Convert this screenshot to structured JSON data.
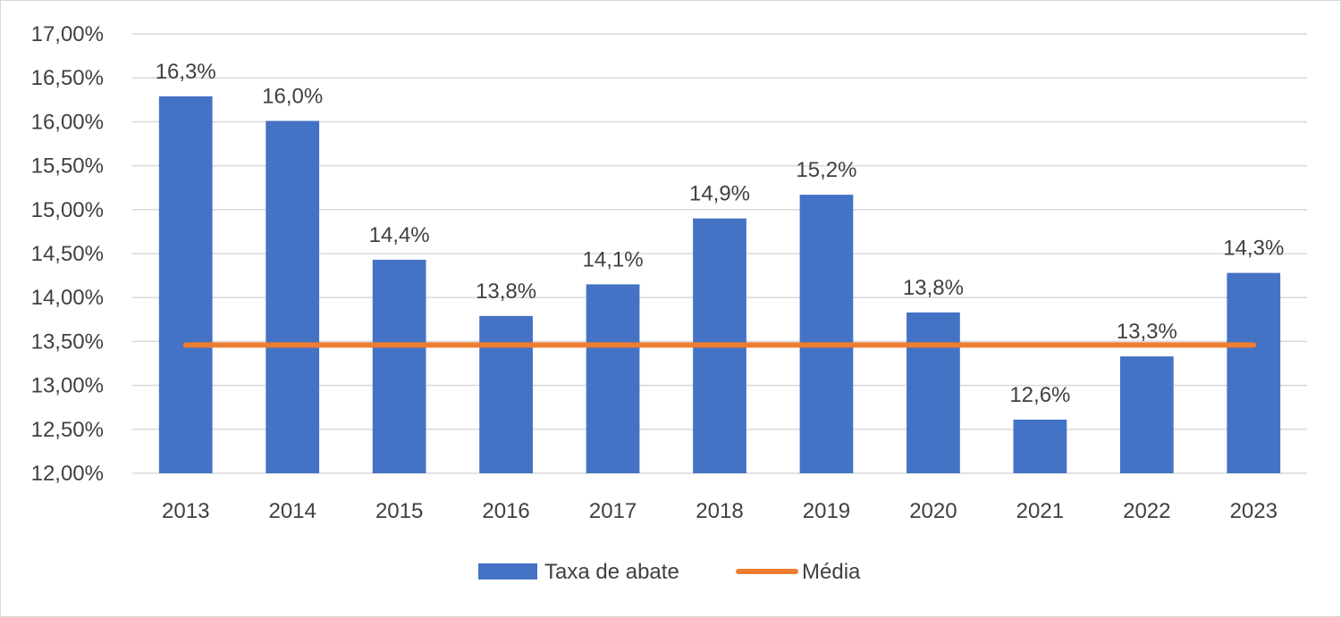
{
  "chart_data": {
    "type": "bar",
    "title": "",
    "xlabel": "",
    "ylabel": "",
    "categories": [
      "2013",
      "2014",
      "2015",
      "2016",
      "2017",
      "2018",
      "2019",
      "2020",
      "2021",
      "2022",
      "2023"
    ],
    "series": [
      {
        "name": "Taxa de abate",
        "type": "bar",
        "color": "#4472c4",
        "values": [
          16.29,
          16.01,
          14.43,
          13.79,
          14.15,
          14.9,
          15.17,
          13.83,
          12.61,
          13.33,
          14.28
        ],
        "data_labels": [
          "16,3%",
          "16,0%",
          "14,4%",
          "13,8%",
          "14,1%",
          "14,9%",
          "15,2%",
          "13,8%",
          "12,6%",
          "13,3%",
          "14,3%"
        ]
      },
      {
        "name": "Média",
        "type": "line",
        "color": "#ed7d31",
        "values": [
          13.46,
          13.46,
          13.46,
          13.46,
          13.46,
          13.46,
          13.46,
          13.46,
          13.46,
          13.46,
          13.46
        ]
      }
    ],
    "ylim": [
      12.0,
      17.0
    ],
    "yticks": [
      12.0,
      12.5,
      13.0,
      13.5,
      14.0,
      14.5,
      15.0,
      15.5,
      16.0,
      16.5,
      17.0
    ],
    "ytick_labels": [
      "12,00%",
      "12,50%",
      "13,00%",
      "13,50%",
      "14,00%",
      "14,50%",
      "15,00%",
      "15,50%",
      "16,00%",
      "16,50%",
      "17,00%"
    ],
    "grid": true,
    "gridline_color": "#d9d9d9",
    "legend_position": "bottom"
  }
}
